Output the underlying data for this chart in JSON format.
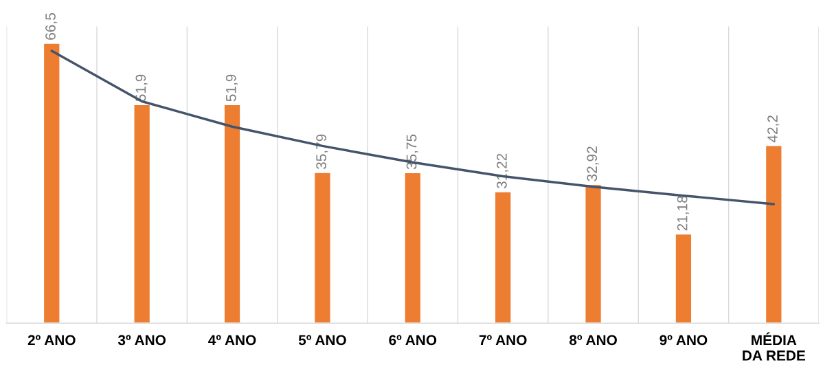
{
  "chart_data": {
    "type": "bar",
    "categories": [
      "2º ANO",
      "3º ANO",
      "4º ANO",
      "5º ANO",
      "6º ANO",
      "7º ANO",
      "8º ANO",
      "9º ANO",
      "MÉDIA\nDA REDE"
    ],
    "series": [
      {
        "color": "#ed7d31",
        "values": [
          66.5,
          51.9,
          51.9,
          35.79,
          35.75,
          31.22,
          32.92,
          21.18,
          42.2
        ],
        "value_labels": [
          "66,5",
          "51,9",
          "51,9",
          "35,79",
          "35,75",
          "31,22",
          "32,92",
          "21,18",
          "42,2"
        ]
      },
      {
        "type": "line",
        "color": "#44546a",
        "values": [
          64.7,
          52.7,
          46.7,
          42.1,
          38.2,
          34.9,
          32.4,
          30.3,
          28.3
        ]
      }
    ],
    "tick_labels": "x",
    "grid": "x"
  }
}
